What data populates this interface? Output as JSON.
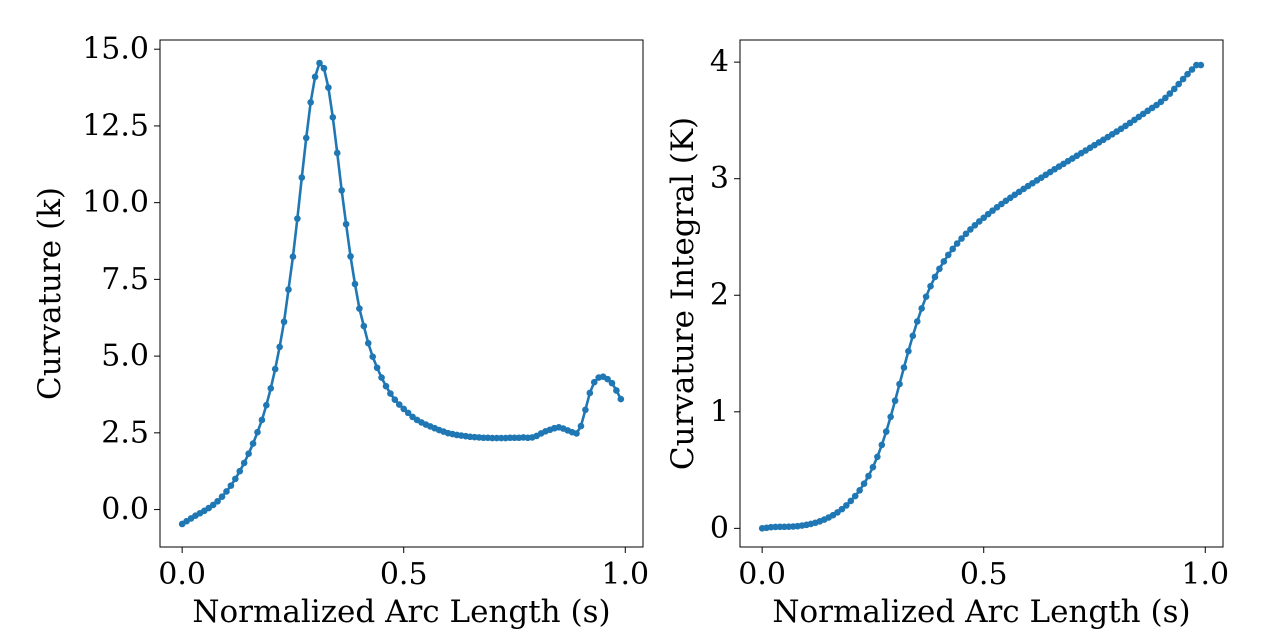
{
  "chart_data": [
    {
      "type": "line",
      "xlabel": "Normalized Arc Length (s)",
      "ylabel": "Curvature (k)",
      "xlim": [
        -0.05,
        1.04
      ],
      "ylim": [
        -1.22,
        15.3
      ],
      "xticks": [
        0.0,
        0.5,
        1.0
      ],
      "xtick_labels": [
        "0.0",
        "0.5",
        "1.0"
      ],
      "yticks": [
        0.0,
        2.5,
        5.0,
        7.5,
        10.0,
        12.5,
        15.0
      ],
      "ytick_labels": [
        "0.0",
        "2.5",
        "5.0",
        "7.5",
        "10.0",
        "12.5",
        "15.0"
      ],
      "grid": false,
      "markers": true,
      "series": [
        {
          "color": "#1f77b4",
          "x": [
            0.0,
            0.01,
            0.02,
            0.03,
            0.04,
            0.05,
            0.06,
            0.07,
            0.08,
            0.09,
            0.1,
            0.11,
            0.12,
            0.13,
            0.14,
            0.15,
            0.16,
            0.17,
            0.18,
            0.19,
            0.2,
            0.21,
            0.22,
            0.23,
            0.24,
            0.25,
            0.26,
            0.27,
            0.28,
            0.29,
            0.3,
            0.31,
            0.32,
            0.33,
            0.34,
            0.35,
            0.36,
            0.37,
            0.38,
            0.39,
            0.4,
            0.41,
            0.42,
            0.43,
            0.44,
            0.45,
            0.46,
            0.47,
            0.48,
            0.49,
            0.5,
            0.51,
            0.52,
            0.53,
            0.54,
            0.55,
            0.56,
            0.57,
            0.58,
            0.59,
            0.6,
            0.61,
            0.62,
            0.63,
            0.64,
            0.65,
            0.66,
            0.67,
            0.68,
            0.69,
            0.7,
            0.71,
            0.72,
            0.73,
            0.74,
            0.75,
            0.76,
            0.77,
            0.78,
            0.79,
            0.8,
            0.81,
            0.82,
            0.83,
            0.84,
            0.85,
            0.86,
            0.87,
            0.88,
            0.89,
            0.9,
            0.91,
            0.92,
            0.93,
            0.94,
            0.95,
            0.96,
            0.97,
            0.98,
            0.99
          ],
          "y": [
            -0.47,
            -0.38,
            -0.29,
            -0.2,
            -0.12,
            -0.04,
            0.05,
            0.15,
            0.27,
            0.42,
            0.59,
            0.78,
            1.0,
            1.25,
            1.52,
            1.82,
            2.15,
            2.52,
            2.92,
            3.4,
            3.95,
            4.58,
            5.3,
            6.12,
            7.17,
            8.24,
            9.48,
            10.82,
            12.11,
            13.27,
            14.1,
            14.55,
            14.38,
            13.75,
            12.78,
            11.62,
            10.4,
            9.3,
            8.25,
            7.35,
            6.55,
            5.98,
            5.42,
            4.98,
            4.62,
            4.3,
            4.02,
            3.78,
            3.58,
            3.42,
            3.28,
            3.15,
            3.02,
            2.92,
            2.84,
            2.77,
            2.71,
            2.65,
            2.59,
            2.54,
            2.49,
            2.46,
            2.43,
            2.41,
            2.39,
            2.37,
            2.36,
            2.35,
            2.34,
            2.34,
            2.33,
            2.33,
            2.33,
            2.33,
            2.34,
            2.34,
            2.34,
            2.35,
            2.34,
            2.35,
            2.4,
            2.48,
            2.55,
            2.6,
            2.65,
            2.68,
            2.64,
            2.58,
            2.52,
            2.48,
            2.72,
            3.25,
            3.8,
            4.15,
            4.3,
            4.33,
            4.25,
            4.12,
            3.88,
            3.6
          ]
        }
      ]
    },
    {
      "type": "line",
      "xlabel": "Normalized Arc Length (s)",
      "ylabel": "Curvature Integral (K)",
      "xlim": [
        -0.05,
        1.04
      ],
      "ylim": [
        -0.16,
        4.19
      ],
      "xticks": [
        0.0,
        0.5,
        1.0
      ],
      "xtick_labels": [
        "0.0",
        "0.5",
        "1.0"
      ],
      "yticks": [
        0,
        1,
        2,
        3,
        4
      ],
      "ytick_labels": [
        "0",
        "1",
        "2",
        "3",
        "4"
      ],
      "grid": false,
      "markers": true,
      "series": [
        {
          "color": "#1f77b4",
          "x": [
            0.0,
            0.01,
            0.02,
            0.03,
            0.04,
            0.05,
            0.06,
            0.07,
            0.08,
            0.09,
            0.1,
            0.11,
            0.12,
            0.13,
            0.14,
            0.15,
            0.16,
            0.17,
            0.18,
            0.19,
            0.2,
            0.21,
            0.22,
            0.23,
            0.24,
            0.25,
            0.26,
            0.27,
            0.28,
            0.29,
            0.3,
            0.31,
            0.32,
            0.33,
            0.34,
            0.35,
            0.36,
            0.37,
            0.38,
            0.39,
            0.4,
            0.41,
            0.42,
            0.43,
            0.44,
            0.45,
            0.46,
            0.47,
            0.48,
            0.49,
            0.5,
            0.51,
            0.52,
            0.53,
            0.54,
            0.55,
            0.56,
            0.57,
            0.58,
            0.59,
            0.6,
            0.61,
            0.62,
            0.63,
            0.64,
            0.65,
            0.66,
            0.67,
            0.68,
            0.69,
            0.7,
            0.71,
            0.72,
            0.73,
            0.74,
            0.75,
            0.76,
            0.77,
            0.78,
            0.79,
            0.8,
            0.81,
            0.82,
            0.83,
            0.84,
            0.85,
            0.86,
            0.87,
            0.88,
            0.89,
            0.9,
            0.91,
            0.92,
            0.93,
            0.94,
            0.95,
            0.96,
            0.97,
            0.98,
            0.99
          ],
          "y": [
            0.0,
            0.005,
            0.01,
            0.012,
            0.013,
            0.013,
            0.014,
            0.016,
            0.019,
            0.024,
            0.03,
            0.038,
            0.048,
            0.06,
            0.075,
            0.093,
            0.113,
            0.137,
            0.165,
            0.197,
            0.235,
            0.277,
            0.326,
            0.383,
            0.449,
            0.525,
            0.614,
            0.716,
            0.83,
            0.957,
            1.095,
            1.238,
            1.38,
            1.52,
            1.652,
            1.775,
            1.887,
            1.988,
            2.078,
            2.157,
            2.227,
            2.29,
            2.346,
            2.397,
            2.444,
            2.487,
            2.527,
            2.565,
            2.6,
            2.633,
            2.665,
            2.696,
            2.726,
            2.755,
            2.783,
            2.81,
            2.836,
            2.862,
            2.887,
            2.912,
            2.937,
            2.961,
            2.985,
            3.009,
            3.033,
            3.057,
            3.081,
            3.104,
            3.127,
            3.15,
            3.173,
            3.196,
            3.219,
            3.242,
            3.265,
            3.288,
            3.311,
            3.334,
            3.357,
            3.381,
            3.404,
            3.428,
            3.453,
            3.478,
            3.504,
            3.53,
            3.556,
            3.582,
            3.607,
            3.632,
            3.66,
            3.693,
            3.73,
            3.77,
            3.812,
            3.855,
            3.897,
            3.937,
            3.975,
            3.975
          ]
        }
      ]
    }
  ]
}
